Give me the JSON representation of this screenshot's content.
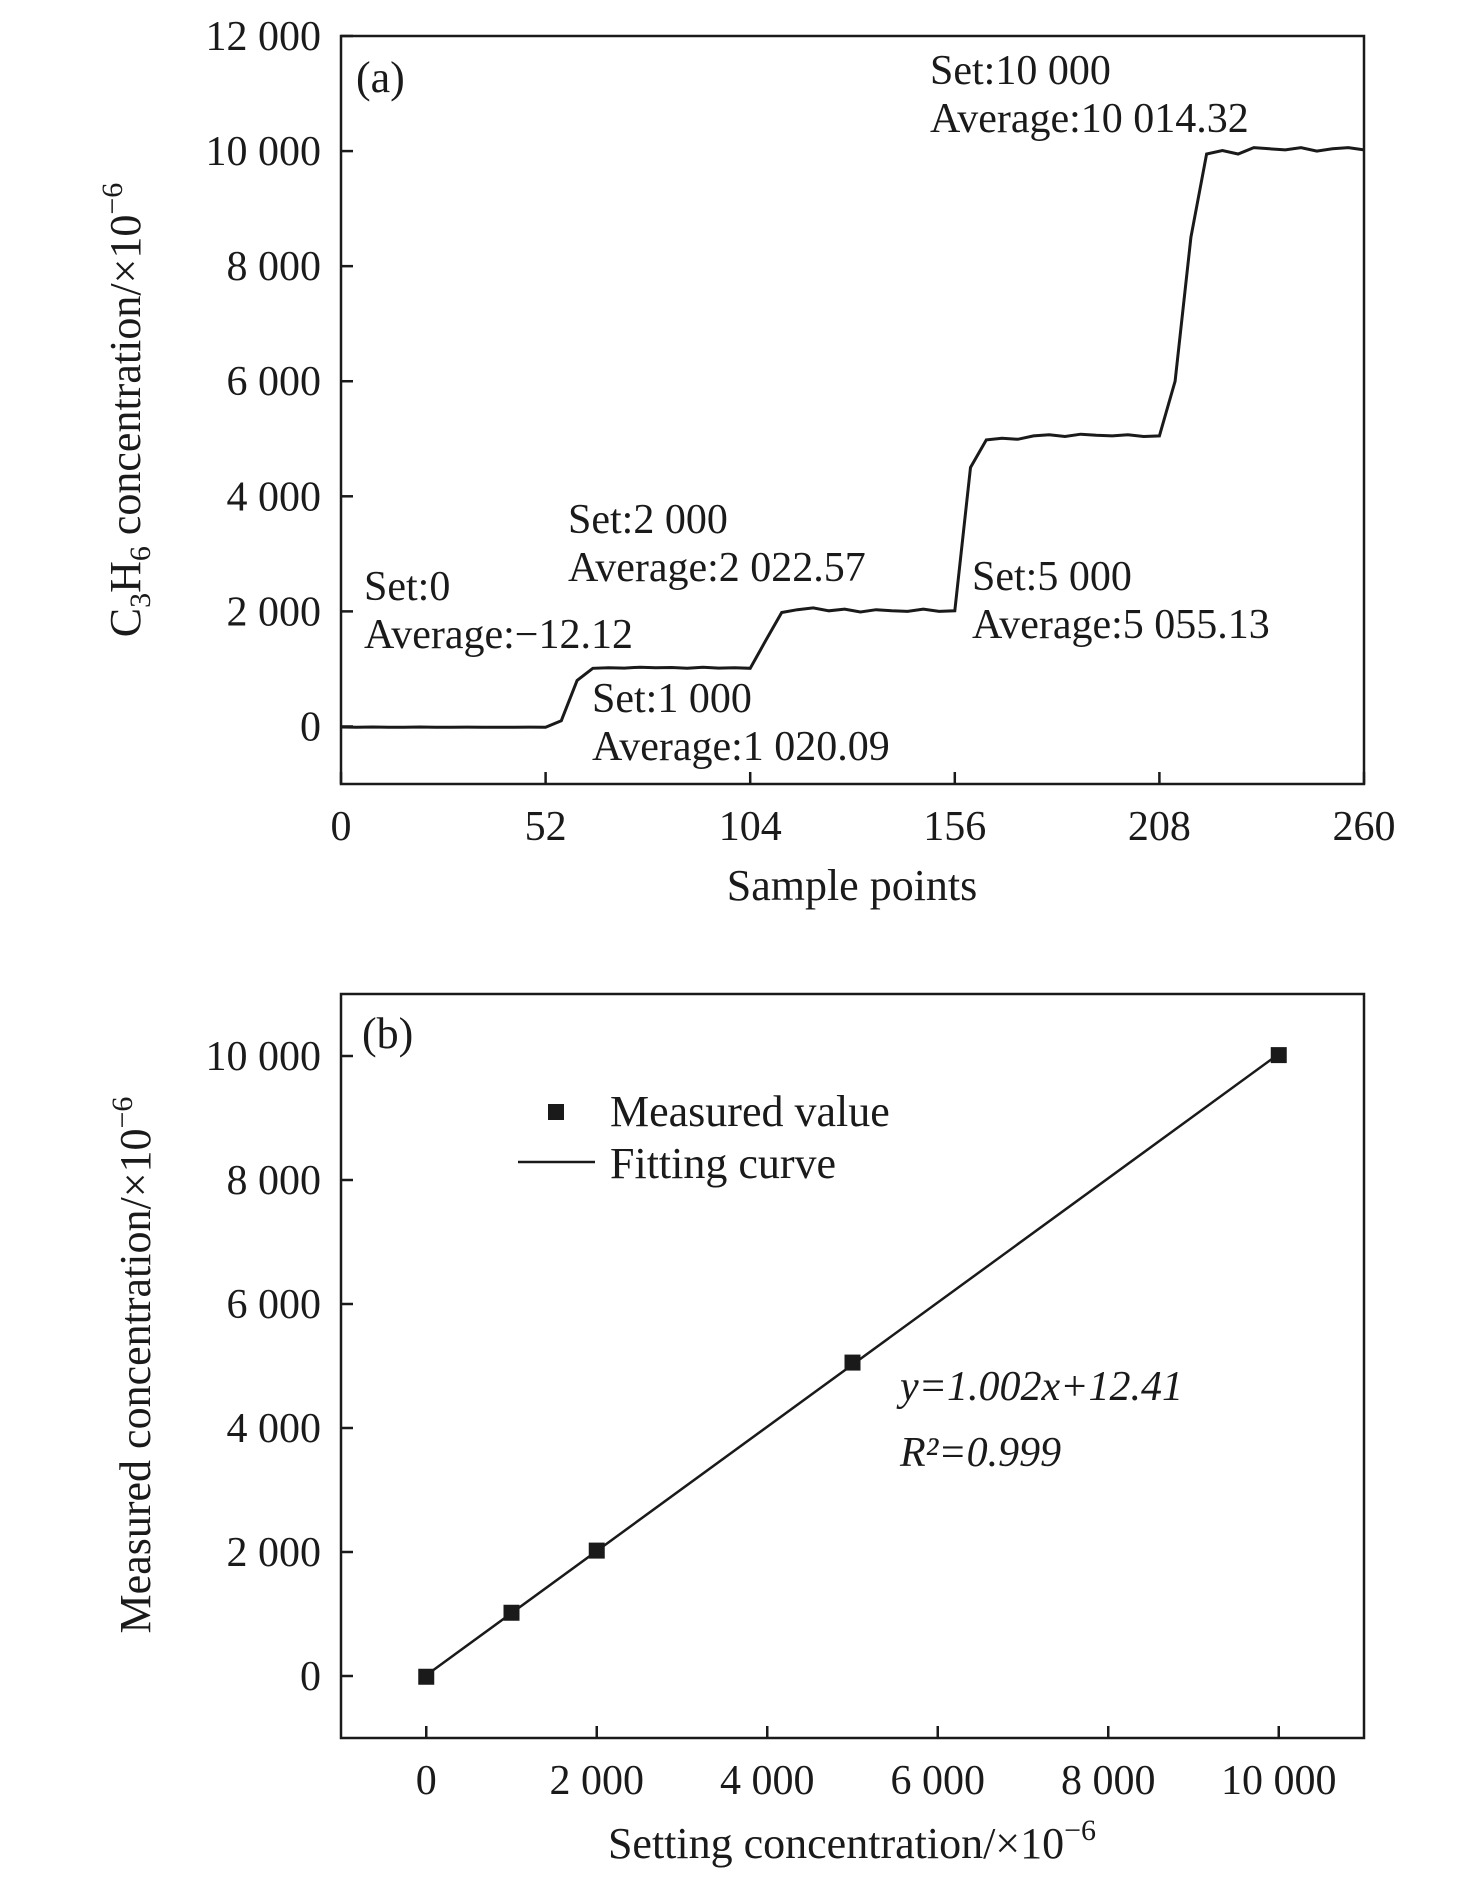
{
  "chart_data": [
    {
      "type": "line",
      "panel_label": "(a)",
      "xlabel": "Sample points",
      "ylabel": "C3H6 concentration/×10⁻⁶",
      "xlim": [
        0,
        260
      ],
      "ylim": [
        -1000,
        12000
      ],
      "xticks": [
        0,
        52,
        104,
        156,
        208,
        260
      ],
      "yticks": [
        0,
        2000,
        4000,
        6000,
        8000,
        10000,
        12000
      ],
      "xtick_labels": [
        "0",
        "52",
        "104",
        "156",
        "208",
        "260"
      ],
      "ytick_labels": [
        "0",
        "2 000",
        "4 000",
        "6 000",
        "8 000",
        "10 000",
        "12 000"
      ],
      "grid": false,
      "line_color": "#1a1a1a",
      "x": [
        0,
        4,
        8,
        12,
        16,
        20,
        24,
        28,
        32,
        36,
        40,
        44,
        48,
        52,
        56,
        60,
        64,
        68,
        72,
        76,
        80,
        84,
        88,
        92,
        96,
        100,
        104,
        108,
        112,
        116,
        120,
        124,
        128,
        132,
        136,
        140,
        144,
        148,
        152,
        156,
        160,
        164,
        168,
        172,
        176,
        180,
        184,
        188,
        192,
        196,
        200,
        204,
        208,
        212,
        216,
        220,
        224,
        228,
        232,
        236,
        240,
        244,
        248,
        252,
        256,
        260
      ],
      "y": [
        -10,
        -12,
        -10,
        -14,
        -12,
        -10,
        -12,
        -13,
        -11,
        -12,
        -14,
        -12,
        -11,
        -12,
        100,
        800,
        1010,
        1020,
        1015,
        1030,
        1020,
        1025,
        1010,
        1030,
        1015,
        1020,
        1010,
        1500,
        1980,
        2030,
        2060,
        2010,
        2040,
        1990,
        2030,
        2010,
        2000,
        2040,
        2000,
        2010,
        4500,
        4980,
        5010,
        4990,
        5050,
        5070,
        5040,
        5080,
        5060,
        5050,
        5070,
        5040,
        5050,
        6000,
        8500,
        9950,
        10010,
        9950,
        10060,
        10040,
        10020,
        10060,
        10000,
        10040,
        10060,
        10020
      ],
      "annotations": [
        {
          "line1": "Set:0",
          "line2": "Average:−12.12"
        },
        {
          "line1": "Set:1 000",
          "line2": "Average:1 020.09"
        },
        {
          "line1": "Set:2 000",
          "line2": "Average:2 022.57"
        },
        {
          "line1": "Set:5 000",
          "line2": "Average:5 055.13"
        },
        {
          "line1": "Set:10 000",
          "line2": "Average:10 014.32"
        }
      ]
    },
    {
      "type": "scatter",
      "panel_label": "(b)",
      "xlabel": "Setting concentration/×10⁻⁶",
      "ylabel": "Measured concentration/×10⁻⁶",
      "xlim": [
        -1000,
        11000
      ],
      "ylim": [
        -1000,
        11000
      ],
      "xticks": [
        0,
        2000,
        4000,
        6000,
        8000,
        10000
      ],
      "yticks": [
        0,
        2000,
        4000,
        6000,
        8000,
        10000
      ],
      "xtick_labels": [
        "0",
        "2 000",
        "4 000",
        "6 000",
        "8 000",
        "10 000"
      ],
      "ytick_labels": [
        "0",
        "2 000",
        "4 000",
        "6 000",
        "8 000",
        "10 000"
      ],
      "grid": false,
      "legend_placement": "top-left",
      "series": [
        {
          "name": "Measured value",
          "marker": "square",
          "x": [
            0,
            1000,
            2000,
            5000,
            10000
          ],
          "y": [
            -12.12,
            1020.09,
            2022.57,
            5055.13,
            10014.32
          ]
        },
        {
          "name": "Fitting curve",
          "kind": "line",
          "slope": 1.002,
          "intercept": 12.41,
          "x_range": [
            0,
            10000
          ]
        }
      ],
      "equation": "y=1.002x+12.41",
      "r_squared": "R²=0.999"
    }
  ]
}
